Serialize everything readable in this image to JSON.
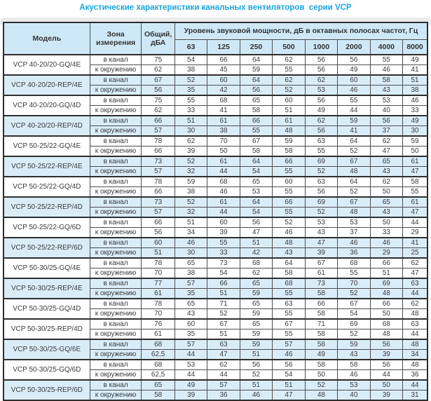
{
  "title": "Акустические характеристики канальных вентиляторов  серии VCP",
  "colors": {
    "title_blue": "#1ba4de",
    "header_bg": "#cfe8f7",
    "row_shade": "#d9edf9",
    "border_dark": "#2e2e2e",
    "border_cell": "#4d4d4d"
  },
  "table": {
    "headers": {
      "model": "Модель",
      "zone": "Зона измерения",
      "total": "Общий, дБА",
      "band_group": "Уровень звуковой мощности, дБ в октавных полосах частот, Гц",
      "frequencies": [
        "63",
        "125",
        "250",
        "500",
        "1000",
        "2000",
        "4000",
        "8000"
      ]
    },
    "zone_labels": {
      "duct": "в канал",
      "ambient": "к окружению"
    },
    "rows": [
      {
        "model": "VCP 40-20/20-GQ/4E",
        "shaded": false,
        "duct": {
          "total": "75",
          "bands": [
            "54",
            "66",
            "64",
            "62",
            "56",
            "56",
            "55",
            "49"
          ]
        },
        "ambient": {
          "total": "62",
          "bands": [
            "38",
            "45",
            "59",
            "55",
            "56",
            "49",
            "46",
            "41"
          ]
        }
      },
      {
        "model": "VCP 40-20/20-REP/4E",
        "shaded": true,
        "duct": {
          "total": "67",
          "bands": [
            "52",
            "60",
            "64",
            "62",
            "62",
            "60",
            "58",
            "51"
          ]
        },
        "ambient": {
          "total": "56",
          "bands": [
            "35",
            "42",
            "56",
            "52",
            "53",
            "46",
            "43",
            "38"
          ]
        }
      },
      {
        "model": "VCP 40-20/20-GQ/4D",
        "shaded": false,
        "duct": {
          "total": "75",
          "bands": [
            "55",
            "68",
            "65",
            "60",
            "56",
            "55",
            "53",
            "46"
          ]
        },
        "ambient": {
          "total": "62",
          "bands": [
            "33",
            "41",
            "58",
            "51",
            "49",
            "44",
            "40",
            "33"
          ]
        }
      },
      {
        "model": "VCP 40-20/20-REP/4D",
        "shaded": true,
        "duct": {
          "total": "66",
          "bands": [
            "51",
            "61",
            "66",
            "61",
            "62",
            "59",
            "56",
            "49"
          ]
        },
        "ambient": {
          "total": "57",
          "bands": [
            "30",
            "38",
            "55",
            "48",
            "56",
            "41",
            "37",
            "30"
          ]
        }
      },
      {
        "model": "VCP 50-25/22-GQ/4E",
        "shaded": false,
        "duct": {
          "total": "78",
          "bands": [
            "62",
            "70",
            "67",
            "59",
            "63",
            "64",
            "62",
            "59"
          ]
        },
        "ambient": {
          "total": "66",
          "bands": [
            "39",
            "50",
            "58",
            "58",
            "55",
            "52",
            "47",
            "50"
          ]
        }
      },
      {
        "model": "VCP 50-25/22-REP/4E",
        "shaded": true,
        "duct": {
          "total": "73",
          "bands": [
            "52",
            "61",
            "64",
            "66",
            "69",
            "67",
            "65",
            "61"
          ]
        },
        "ambient": {
          "total": "57",
          "bands": [
            "32",
            "44",
            "54",
            "55",
            "52",
            "48",
            "43",
            "47"
          ]
        }
      },
      {
        "model": "VCP 50-25/22-GQ/4D",
        "shaded": false,
        "duct": {
          "total": "78",
          "bands": [
            "59",
            "68",
            "65",
            "60",
            "63",
            "64",
            "62",
            "58"
          ]
        },
        "ambient": {
          "total": "66",
          "bands": [
            "38",
            "46",
            "53",
            "55",
            "56",
            "52",
            "50",
            "55"
          ]
        }
      },
      {
        "model": "VCP 50-25/22-REP/4D",
        "shaded": true,
        "duct": {
          "total": "73",
          "bands": [
            "52",
            "61",
            "64",
            "66",
            "69",
            "67",
            "65",
            "61"
          ]
        },
        "ambient": {
          "total": "57",
          "bands": [
            "32",
            "44",
            "54",
            "55",
            "52",
            "48",
            "43",
            "47"
          ]
        }
      },
      {
        "model": "VCP 50-25/22-GQ/6D",
        "shaded": false,
        "duct": {
          "total": "66",
          "bands": [
            "51",
            "60",
            "56",
            "52",
            "53",
            "53",
            "50",
            "44"
          ]
        },
        "ambient": {
          "total": "56",
          "bands": [
            "34",
            "39",
            "47",
            "46",
            "43",
            "37",
            "33",
            "29"
          ]
        }
      },
      {
        "model": "VCP 50-25/22-REP/6D",
        "shaded": true,
        "duct": {
          "total": "60",
          "bands": [
            "46",
            "55",
            "51",
            "48",
            "47",
            "46",
            "46",
            "41"
          ]
        },
        "ambient": {
          "total": "51",
          "bands": [
            "30",
            "33",
            "42",
            "43",
            "39",
            "36",
            "29",
            "25"
          ]
        }
      },
      {
        "model": "VCP 50-30/25-GQ/4E",
        "shaded": false,
        "duct": {
          "total": "78",
          "bands": [
            "65",
            "73",
            "68",
            "64",
            "67",
            "68",
            "66",
            "62"
          ]
        },
        "ambient": {
          "total": "70",
          "bands": [
            "38",
            "54",
            "62",
            "58",
            "61",
            "55",
            "51",
            "47"
          ]
        }
      },
      {
        "model": "VCP 50-30/25-REP/4E",
        "shaded": true,
        "duct": {
          "total": "77",
          "bands": [
            "57",
            "66",
            "65",
            "68",
            "73",
            "70",
            "69",
            "63"
          ]
        },
        "ambient": {
          "total": "61",
          "bands": [
            "35",
            "51",
            "59",
            "55",
            "58",
            "52",
            "48",
            "44"
          ]
        }
      },
      {
        "model": "VCP 50-30/25-GQ/4D",
        "shaded": false,
        "duct": {
          "total": "78",
          "bands": [
            "65",
            "71",
            "65",
            "63",
            "66",
            "67",
            "66",
            "62"
          ]
        },
        "ambient": {
          "total": "70",
          "bands": [
            "43",
            "52",
            "59",
            "55",
            "58",
            "54",
            "50",
            "48"
          ]
        }
      },
      {
        "model": "VCP 50-30/25-REP/4D",
        "shaded": false,
        "duct": {
          "total": "76",
          "bands": [
            "60",
            "67",
            "65",
            "67",
            "71",
            "69",
            "68",
            "63"
          ]
        },
        "ambient": {
          "total": "61",
          "bands": [
            "35",
            "51",
            "59",
            "55",
            "58",
            "52",
            "48",
            "44"
          ]
        }
      },
      {
        "model": "VCP 50-30/25-GQ/6E",
        "shaded": true,
        "duct": {
          "total": "68",
          "bands": [
            "57",
            "63",
            "59",
            "57",
            "58",
            "59",
            "56",
            "48"
          ]
        },
        "ambient": {
          "total": "62,5",
          "bands": [
            "44",
            "47",
            "51",
            "46",
            "49",
            "43",
            "39",
            "34"
          ]
        }
      },
      {
        "model": "VCP 50-30/25-GQ/6D",
        "shaded": false,
        "duct": {
          "total": "68",
          "bands": [
            "53",
            "62",
            "56",
            "56",
            "58",
            "58",
            "56",
            "48"
          ]
        },
        "ambient": {
          "total": "62,5",
          "bands": [
            "44",
            "44",
            "52",
            "54",
            "50",
            "46",
            "44",
            "36"
          ]
        }
      },
      {
        "model": "VCP 50-30/25-REP/6D",
        "shaded": true,
        "duct": {
          "total": "65",
          "bands": [
            "49",
            "57",
            "51",
            "51",
            "52",
            "53",
            "50",
            "44"
          ]
        },
        "ambient": {
          "total": "58",
          "bands": [
            "39",
            "36",
            "46",
            "47",
            "48",
            "40",
            "39",
            "31"
          ]
        }
      }
    ]
  }
}
